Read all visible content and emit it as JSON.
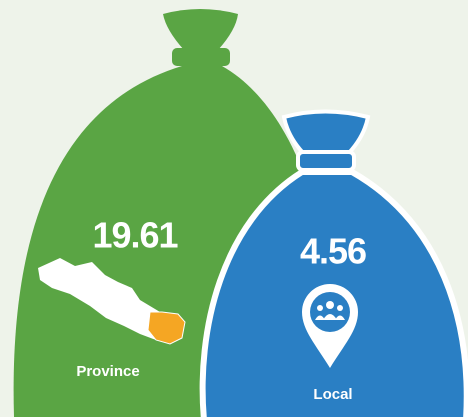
{
  "bags": [
    {
      "value": 19.61,
      "label": "Province"
    },
    {
      "value": 4.56,
      "label": "Local"
    }
  ]
}
